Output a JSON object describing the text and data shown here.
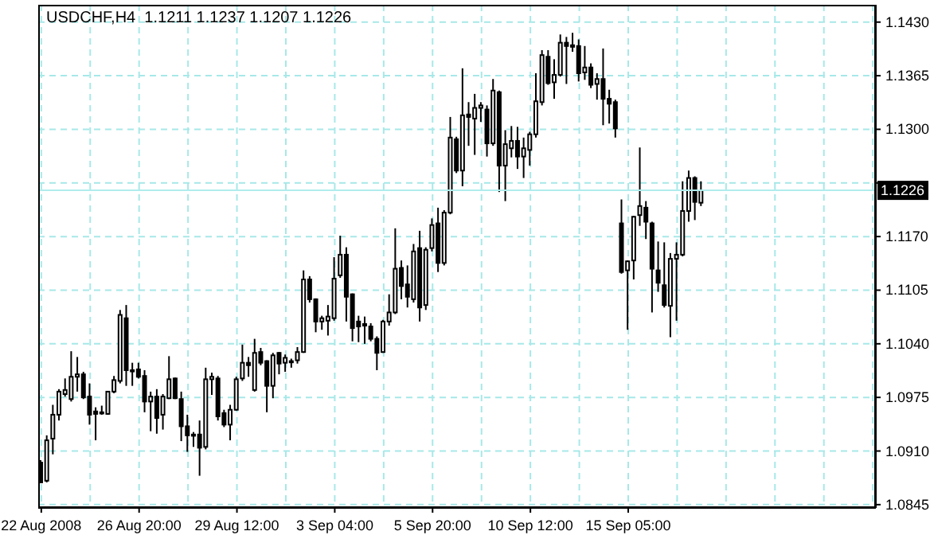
{
  "chart_data": {
    "type": "candlestick",
    "title": "USDCHF,H4  1.1211 1.1237 1.1207 1.1226",
    "categories": [
      "22 Aug 2008",
      null,
      null,
      null,
      null,
      null,
      null,
      null,
      null,
      null,
      null,
      null,
      null,
      null,
      null,
      null,
      "26 Aug 20:00",
      null,
      null,
      null,
      null,
      null,
      null,
      null,
      null,
      null,
      null,
      null,
      null,
      null,
      null,
      null,
      "29 Aug 12:00",
      null,
      null,
      null,
      null,
      null,
      null,
      null,
      null,
      null,
      null,
      null,
      null,
      null,
      null,
      null,
      "3 Sep 04:00",
      null,
      null,
      null,
      null,
      null,
      null,
      null,
      null,
      null,
      null,
      null,
      null,
      null,
      null,
      null,
      "5 Sep 20:00",
      null,
      null,
      null,
      null,
      null,
      null,
      null,
      null,
      null,
      null,
      null,
      null,
      null,
      null,
      null,
      "10 Sep 12:00",
      null,
      null,
      null,
      null,
      null,
      null,
      null,
      null,
      null,
      null,
      null,
      null,
      null,
      null,
      null,
      "15 Sep 05:00",
      null,
      null,
      null,
      null,
      null,
      null,
      null,
      null,
      null,
      null,
      null,
      null,
      null,
      null,
      null,
      null,
      null,
      null,
      null,
      null,
      null,
      null,
      null,
      null,
      null,
      null,
      null,
      null,
      null,
      null,
      null,
      null,
      null,
      null,
      null,
      null,
      null,
      null,
      null,
      null
    ],
    "ohlc": [
      [
        1.0896,
        1.0899,
        1.0871,
        1.0872
      ],
      [
        1.0874,
        1.0929,
        1.0872,
        1.0923
      ],
      [
        1.0925,
        1.0966,
        1.0906,
        1.0954
      ],
      [
        1.0954,
        1.0985,
        1.0947,
        1.0982
      ],
      [
        1.0979,
        1.0998,
        1.0976,
        1.0984
      ],
      [
        1.0973,
        1.1031,
        1.097,
        1.1
      ],
      [
        1.1,
        1.1024,
        1.0982,
        1.1003
      ],
      [
        1.1003,
        1.1006,
        1.0973,
        1.0975
      ],
      [
        1.0976,
        1.0992,
        1.0942,
        1.0954
      ],
      [
        1.0958,
        1.0963,
        1.0923,
        1.0955
      ],
      [
        1.0957,
        1.0965,
        1.0954,
        1.0956
      ],
      [
        1.0955,
        1.0982,
        1.0954,
        1.0982
      ],
      [
        1.0982,
        1.1001,
        1.098,
        1.0996
      ],
      [
        1.0995,
        1.1081,
        1.0992,
        1.1075
      ],
      [
        1.1071,
        1.1087,
        1.0989,
        1.1008
      ],
      [
        1.1008,
        1.1017,
        1.0989,
        1.1007
      ],
      [
        1.1009,
        1.1017,
        1.0998,
        1.1
      ],
      [
        1.1001,
        1.1008,
        1.0957,
        1.097
      ],
      [
        1.097,
        1.0982,
        1.0934,
        1.0976
      ],
      [
        1.0976,
        1.0985,
        1.0931,
        1.095
      ],
      [
        1.0954,
        1.0979,
        1.0936,
        1.0976
      ],
      [
        1.0974,
        1.1025,
        1.0973,
        1.0997
      ],
      [
        1.0998,
        1.0999,
        1.0973,
        1.0974
      ],
      [
        1.0973,
        1.0982,
        1.0922,
        1.094
      ],
      [
        1.094,
        1.0954,
        1.0909,
        1.0929
      ],
      [
        1.093,
        1.0933,
        1.0915,
        1.093
      ],
      [
        1.093,
        1.0947,
        1.088,
        1.0914
      ],
      [
        1.0915,
        1.1011,
        1.0912,
        1.0997
      ],
      [
        1.0997,
        1.1005,
        1.0978,
        1.1
      ],
      [
        1.0998,
        1.1001,
        1.0947,
        1.0952
      ],
      [
        1.0956,
        1.096,
        1.0939,
        1.0942
      ],
      [
        1.0942,
        1.0966,
        1.0923,
        1.096
      ],
      [
        1.096,
        1.1,
        1.0959,
        1.0997
      ],
      [
        1.0998,
        1.1039,
        1.0995,
        1.1017
      ],
      [
        1.1017,
        1.1024,
        1.1,
        1.1014
      ],
      [
        1.0984,
        1.1046,
        1.0982,
        1.1029
      ],
      [
        1.103,
        1.1035,
        1.1014,
        1.1017
      ],
      [
        1.1019,
        1.102,
        1.0957,
        1.0989
      ],
      [
        1.0989,
        1.1029,
        1.0974,
        1.1026
      ],
      [
        1.1029,
        1.103,
        1.1003,
        1.1016
      ],
      [
        1.1017,
        1.1027,
        1.1006,
        1.1023
      ],
      [
        1.1019,
        1.1022,
        1.1011,
        1.1018
      ],
      [
        1.102,
        1.1036,
        1.1016,
        1.103
      ],
      [
        1.103,
        1.1129,
        1.1029,
        1.1118
      ],
      [
        1.1118,
        1.1122,
        1.109,
        1.1094
      ],
      [
        1.1094,
        1.1095,
        1.1054,
        1.1067
      ],
      [
        1.1067,
        1.1074,
        1.1057,
        1.1071
      ],
      [
        1.1068,
        1.1087,
        1.105,
        1.1073
      ],
      [
        1.1071,
        1.1145,
        1.1068,
        1.1119
      ],
      [
        1.1123,
        1.1171,
        1.112,
        1.1148
      ],
      [
        1.1148,
        1.1157,
        1.1067,
        1.1097
      ],
      [
        1.11,
        1.1101,
        1.1043,
        1.1059
      ],
      [
        1.1067,
        1.1074,
        1.1042,
        1.1061
      ],
      [
        1.1064,
        1.1073,
        1.104,
        1.1062
      ],
      [
        1.1061,
        1.1065,
        1.1043,
        1.1046
      ],
      [
        1.1046,
        1.1049,
        1.1008,
        1.1029
      ],
      [
        1.103,
        1.1069,
        1.1029,
        1.1067
      ],
      [
        1.1067,
        1.11,
        1.1062,
        1.1078
      ],
      [
        1.1078,
        1.118,
        1.1076,
        1.1131
      ],
      [
        1.1132,
        1.1141,
        1.1094,
        1.111
      ],
      [
        1.1112,
        1.1135,
        1.1084,
        1.1097
      ],
      [
        1.1094,
        1.1161,
        1.109,
        1.1152
      ],
      [
        1.1156,
        1.1177,
        1.1067,
        1.1084
      ],
      [
        1.1087,
        1.1157,
        1.1081,
        1.1154
      ],
      [
        1.1156,
        1.1192,
        1.1152,
        1.1184
      ],
      [
        1.1186,
        1.1205,
        1.1127,
        1.1138
      ],
      [
        1.1138,
        1.1202,
        1.1135,
        1.1199
      ],
      [
        1.1199,
        1.1315,
        1.1197,
        1.129
      ],
      [
        1.1288,
        1.1291,
        1.1247,
        1.125
      ],
      [
        1.125,
        1.1374,
        1.1231,
        1.1317
      ],
      [
        1.1318,
        1.1333,
        1.128,
        1.1315
      ],
      [
        1.1313,
        1.1343,
        1.1269,
        1.1326
      ],
      [
        1.1326,
        1.1333,
        1.1309,
        1.1329
      ],
      [
        1.1324,
        1.1329,
        1.1267,
        1.1283
      ],
      [
        1.1283,
        1.1361,
        1.128,
        1.1347
      ],
      [
        1.1345,
        1.1347,
        1.1224,
        1.1256
      ],
      [
        1.1256,
        1.1299,
        1.1213,
        1.1282
      ],
      [
        1.1277,
        1.1304,
        1.1266,
        1.1286
      ],
      [
        1.1286,
        1.1303,
        1.1252,
        1.1267
      ],
      [
        1.1267,
        1.129,
        1.1241,
        1.1277
      ],
      [
        1.1275,
        1.1297,
        1.1256,
        1.1294
      ],
      [
        1.1294,
        1.1368,
        1.129,
        1.1334
      ],
      [
        1.1333,
        1.1396,
        1.1329,
        1.139
      ],
      [
        1.1388,
        1.1396,
        1.1354,
        1.1356
      ],
      [
        1.1357,
        1.1385,
        1.1337,
        1.1366
      ],
      [
        1.1366,
        1.1415,
        1.1364,
        1.1405
      ],
      [
        1.1405,
        1.1412,
        1.1355,
        1.1401
      ],
      [
        1.14,
        1.1417,
        1.1394,
        1.1402
      ],
      [
        1.1401,
        1.1409,
        1.1358,
        1.1368
      ],
      [
        1.1369,
        1.1401,
        1.136,
        1.1375
      ],
      [
        1.1375,
        1.138,
        1.135,
        1.1354
      ],
      [
        1.1355,
        1.1368,
        1.1336,
        1.1361
      ],
      [
        1.1361,
        1.1398,
        1.1305,
        1.1337
      ],
      [
        1.1337,
        1.1348,
        1.1307,
        1.1331
      ],
      [
        1.1333,
        1.1336,
        1.129,
        1.1301
      ],
      [
        1.1186,
        1.1215,
        1.1125,
        1.1127
      ],
      [
        1.1129,
        1.1141,
        1.1057,
        1.114
      ],
      [
        1.1141,
        1.1195,
        1.1118,
        1.1194
      ],
      [
        1.1196,
        1.1278,
        1.1183,
        1.1207
      ],
      [
        1.1205,
        1.1213,
        1.1167,
        1.1188
      ],
      [
        1.1186,
        1.1188,
        1.1078,
        1.1131
      ],
      [
        1.1129,
        1.1164,
        1.1103,
        1.1114
      ],
      [
        1.1111,
        1.1163,
        1.1084,
        1.1087
      ],
      [
        1.1086,
        1.115,
        1.1048,
        1.1143
      ],
      [
        1.1143,
        1.1163,
        1.1068,
        1.1148
      ],
      [
        1.1148,
        1.1237,
        1.1146,
        1.1201
      ],
      [
        1.1201,
        1.125,
        1.1188,
        1.1241
      ],
      [
        1.1241,
        1.1243,
        1.119,
        1.1212
      ],
      [
        1.1211,
        1.1237,
        1.1207,
        1.1226
      ],
      null,
      null,
      null,
      null,
      null,
      null,
      null,
      null,
      null,
      null,
      null,
      null,
      null,
      null,
      null,
      null,
      null,
      null,
      null,
      null,
      null,
      null,
      null,
      null,
      null,
      null,
      null,
      null
    ],
    "ylim": [
      1.0841,
      1.1451
    ],
    "yticks": [
      1.0845,
      {
        "value": 1.091,
        "label": "1.0910"
      },
      1.0975,
      {
        "value": 1.104,
        "label": "1.1040"
      },
      1.1105,
      {
        "value": 1.117,
        "label": "1.1170"
      },
      {
        "value": 1.1235,
        "label": null
      },
      {
        "value": 1.13,
        "label": "1.1300"
      },
      1.1365,
      {
        "value": 1.143,
        "label": "1.1430"
      }
    ],
    "ref_lines": [
      {
        "axis": "y",
        "value": 1.1226,
        "label": "1.1226",
        "color": "#b0ecec"
      }
    ],
    "grid": true
  }
}
